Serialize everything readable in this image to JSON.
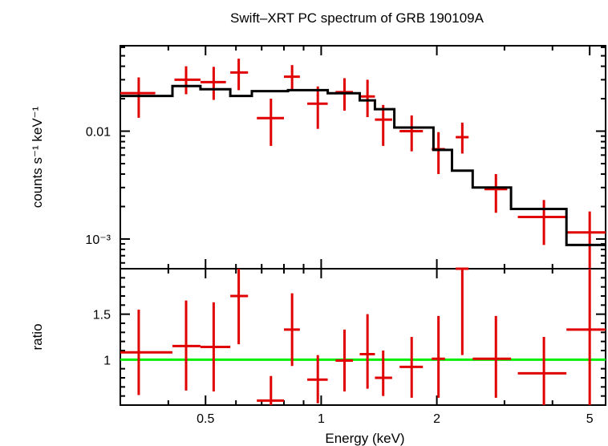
{
  "chart_data": {
    "type": "scatter",
    "title": "Swift–XRT PC spectrum of GRB 190109A",
    "xlabel": "Energy (keV)",
    "x_scale": "log",
    "xlim": [
      0.3,
      5.5
    ],
    "x_ticks": [
      {
        "value": 0.5,
        "label": "0.5"
      },
      {
        "value": 1,
        "label": "1"
      },
      {
        "value": 2,
        "label": "2"
      },
      {
        "value": 5,
        "label": "5"
      }
    ],
    "panels": [
      {
        "name": "spectrum",
        "ylabel": "counts s⁻¹ keV⁻¹",
        "y_scale": "log",
        "ylim": [
          0.00053,
          0.062
        ],
        "y_ticks": [
          {
            "value": 0.01,
            "label": "0.01"
          },
          {
            "value": 0.001,
            "label": "10⁻³"
          }
        ],
        "series": [
          {
            "kind": "data",
            "color": "#e00000",
            "points": [
              {
                "x": 0.335,
                "xlo": 0.3,
                "xhi": 0.37,
                "y": 0.0225,
                "ylo": 0.0133,
                "yhi": 0.0315
              },
              {
                "x": 0.445,
                "xlo": 0.415,
                "xhi": 0.485,
                "y": 0.03,
                "ylo": 0.022,
                "yhi": 0.04
              },
              {
                "x": 0.525,
                "xlo": 0.485,
                "xhi": 0.565,
                "y": 0.0285,
                "ylo": 0.0195,
                "yhi": 0.0395
              },
              {
                "x": 0.61,
                "xlo": 0.58,
                "xhi": 0.645,
                "y": 0.035,
                "ylo": 0.024,
                "yhi": 0.047
              },
              {
                "x": 0.74,
                "xlo": 0.68,
                "xhi": 0.8,
                "y": 0.0132,
                "ylo": 0.0073,
                "yhi": 0.02
              },
              {
                "x": 0.84,
                "xlo": 0.8,
                "xhi": 0.88,
                "y": 0.032,
                "ylo": 0.024,
                "yhi": 0.041
              },
              {
                "x": 0.98,
                "xlo": 0.92,
                "xhi": 1.04,
                "y": 0.018,
                "ylo": 0.0105,
                "yhi": 0.026
              },
              {
                "x": 1.15,
                "xlo": 1.09,
                "xhi": 1.21,
                "y": 0.023,
                "ylo": 0.0155,
                "yhi": 0.031
              },
              {
                "x": 1.32,
                "xlo": 1.26,
                "xhi": 1.38,
                "y": 0.021,
                "ylo": 0.0135,
                "yhi": 0.03
              },
              {
                "x": 1.45,
                "xlo": 1.38,
                "xhi": 1.53,
                "y": 0.0128,
                "ylo": 0.0073,
                "yhi": 0.0175
              },
              {
                "x": 1.72,
                "xlo": 1.6,
                "xhi": 1.84,
                "y": 0.01,
                "ylo": 0.0065,
                "yhi": 0.014
              },
              {
                "x": 2.02,
                "xlo": 1.94,
                "xhi": 2.1,
                "y": 0.0068,
                "ylo": 0.004,
                "yhi": 0.0098
              },
              {
                "x": 2.33,
                "xlo": 2.24,
                "xhi": 2.42,
                "y": 0.0088,
                "ylo": 0.0062,
                "yhi": 0.012
              },
              {
                "x": 2.85,
                "xlo": 2.66,
                "xhi": 3.05,
                "y": 0.0029,
                "ylo": 0.00175,
                "yhi": 0.004
              },
              {
                "x": 3.8,
                "xlo": 3.25,
                "xhi": 4.35,
                "y": 0.0016,
                "ylo": 0.00088,
                "yhi": 0.0023
              },
              {
                "x": 5.0,
                "xlo": 4.35,
                "xhi": 5.5,
                "y": 0.00115,
                "ylo": 0.00053,
                "yhi": 0.0018
              }
            ]
          },
          {
            "kind": "model",
            "color": "#000000",
            "steps": [
              {
                "x0": 0.3,
                "x1": 0.41,
                "y": 0.0212
              },
              {
                "x0": 0.41,
                "x1": 0.485,
                "y": 0.0262
              },
              {
                "x0": 0.485,
                "x1": 0.58,
                "y": 0.0245
              },
              {
                "x0": 0.58,
                "x1": 0.66,
                "y": 0.0212
              },
              {
                "x0": 0.66,
                "x1": 0.82,
                "y": 0.0235
              },
              {
                "x0": 0.82,
                "x1": 1.04,
                "y": 0.024
              },
              {
                "x0": 1.04,
                "x1": 1.26,
                "y": 0.0225
              },
              {
                "x0": 1.26,
                "x1": 1.38,
                "y": 0.0193
              },
              {
                "x0": 1.38,
                "x1": 1.55,
                "y": 0.016
              },
              {
                "x0": 1.55,
                "x1": 1.96,
                "y": 0.0108
              },
              {
                "x0": 1.96,
                "x1": 2.19,
                "y": 0.0067
              },
              {
                "x0": 2.19,
                "x1": 2.48,
                "y": 0.0043
              },
              {
                "x0": 2.48,
                "x1": 3.12,
                "y": 0.003
              },
              {
                "x0": 3.12,
                "x1": 4.35,
                "y": 0.0019
              },
              {
                "x0": 4.35,
                "x1": 5.5,
                "y": 0.00088
              }
            ]
          }
        ]
      },
      {
        "name": "ratio",
        "ylabel": "ratio",
        "y_scale": "linear",
        "ylim": [
          0.5,
          2.0
        ],
        "y_ticks": [
          {
            "value": 1,
            "label": "1"
          },
          {
            "value": 1.5,
            "label": "1.5"
          }
        ],
        "reference_line": {
          "y": 1,
          "color": "#00ee00"
        },
        "series": [
          {
            "kind": "data",
            "color": "#e00000",
            "points": [
              {
                "x": 0.335,
                "xlo": 0.3,
                "xhi": 0.41,
                "y": 1.08,
                "ylo": 0.61,
                "yhi": 1.55
              },
              {
                "x": 0.445,
                "xlo": 0.41,
                "xhi": 0.485,
                "y": 1.15,
                "ylo": 0.66,
                "yhi": 1.65
              },
              {
                "x": 0.525,
                "xlo": 0.485,
                "xhi": 0.58,
                "y": 1.14,
                "ylo": 0.65,
                "yhi": 1.63
              },
              {
                "x": 0.61,
                "xlo": 0.58,
                "xhi": 0.645,
                "y": 1.7,
                "ylo": 1.17,
                "yhi": 2.0
              },
              {
                "x": 0.74,
                "xlo": 0.68,
                "xhi": 0.8,
                "y": 0.55,
                "ylo": 0.5,
                "yhi": 0.82
              },
              {
                "x": 0.84,
                "xlo": 0.8,
                "xhi": 0.88,
                "y": 1.33,
                "ylo": 0.93,
                "yhi": 1.73
              },
              {
                "x": 0.98,
                "xlo": 0.92,
                "xhi": 1.04,
                "y": 0.78,
                "ylo": 0.52,
                "yhi": 1.05
              },
              {
                "x": 1.15,
                "xlo": 1.09,
                "xhi": 1.21,
                "y": 0.99,
                "ylo": 0.65,
                "yhi": 1.33
              },
              {
                "x": 1.32,
                "xlo": 1.26,
                "xhi": 1.38,
                "y": 1.06,
                "ylo": 0.68,
                "yhi": 1.5
              },
              {
                "x": 1.45,
                "xlo": 1.38,
                "xhi": 1.53,
                "y": 0.8,
                "ylo": 0.6,
                "yhi": 1.1
              },
              {
                "x": 1.72,
                "xlo": 1.6,
                "xhi": 1.84,
                "y": 0.92,
                "ylo": 0.58,
                "yhi": 1.25
              },
              {
                "x": 2.02,
                "xlo": 1.94,
                "xhi": 2.1,
                "y": 1.01,
                "ylo": 0.58,
                "yhi": 1.48
              },
              {
                "x": 2.33,
                "xlo": 2.24,
                "xhi": 2.42,
                "y": 2.0,
                "ylo": 1.05,
                "yhi": 2.0
              },
              {
                "x": 2.85,
                "xlo": 2.48,
                "xhi": 3.12,
                "y": 1.01,
                "ylo": 0.58,
                "yhi": 1.48
              },
              {
                "x": 3.8,
                "xlo": 3.25,
                "xhi": 4.35,
                "y": 0.85,
                "ylo": 0.5,
                "yhi": 1.25
              },
              {
                "x": 5.0,
                "xlo": 4.35,
                "xhi": 5.5,
                "y": 1.33,
                "ylo": 0.5,
                "yhi": 2.0
              }
            ]
          }
        ]
      }
    ]
  }
}
